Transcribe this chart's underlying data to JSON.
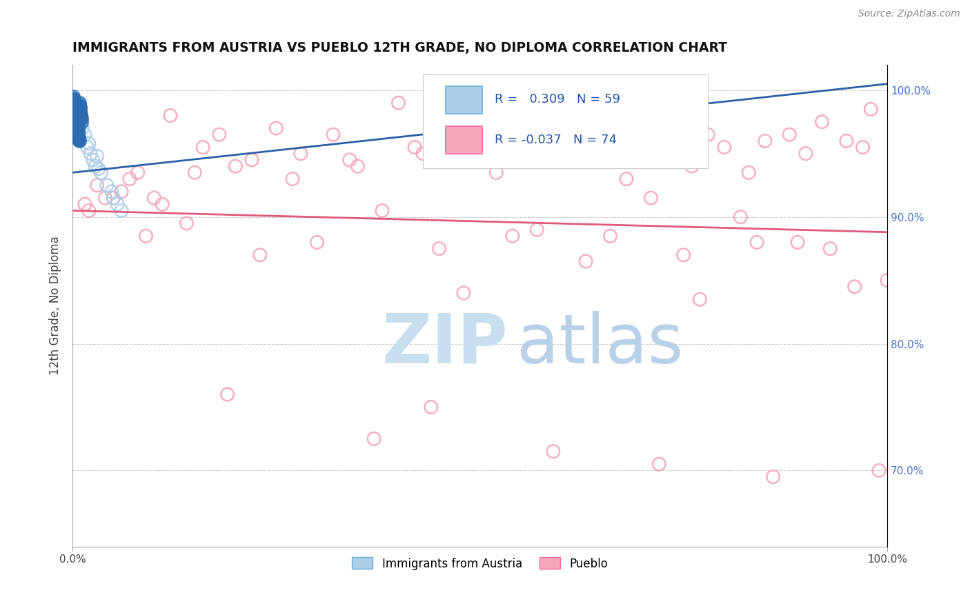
{
  "title": "IMMIGRANTS FROM AUSTRIA VS PUEBLO 12TH GRADE, NO DIPLOMA CORRELATION CHART",
  "source": "Source: ZipAtlas.com",
  "ylabel": "12th Grade, No Diploma",
  "legend_blue_label": "Immigrants from Austria",
  "legend_pink_label": "Pueblo",
  "r_blue": 0.309,
  "n_blue": 59,
  "r_pink": -0.037,
  "n_pink": 74,
  "blue_circle_color": "#aecde8",
  "blue_fill_color": "#2b6cb0",
  "pink_circle_color": "#f4a7b9",
  "trend_blue": "#2b5fa5",
  "trend_pink": "#e05a7a",
  "background": "#ffffff",
  "grid_color": "#cccccc",
  "watermark_zip_color": "#c8dff0",
  "watermark_atlas_color": "#b8d0e8",
  "blue_open_x": [
    1.5,
    2.2,
    2.8,
    3.5,
    1.8,
    4.2,
    5.0,
    2.5,
    6.0,
    3.0,
    4.8,
    3.2,
    1.2,
    2.0,
    5.5
  ],
  "blue_open_y": [
    96.5,
    95.0,
    94.0,
    93.5,
    95.5,
    92.5,
    91.5,
    94.5,
    90.5,
    94.8,
    92.0,
    93.8,
    97.0,
    95.8,
    91.0
  ],
  "blue_dense_x": [
    0.1,
    0.15,
    0.2,
    0.25,
    0.3,
    0.35,
    0.4,
    0.45,
    0.5,
    0.55,
    0.6,
    0.65,
    0.7,
    0.75,
    0.8,
    0.85,
    0.9,
    0.95,
    1.0,
    1.05,
    1.1,
    0.12,
    0.18,
    0.22,
    0.28,
    0.32,
    0.38,
    0.42,
    0.48,
    0.52,
    0.58,
    0.62,
    0.68,
    0.72,
    0.78,
    0.82,
    0.88,
    0.92,
    0.98
  ],
  "blue_dense_y": [
    99.5,
    99.2,
    99.0,
    98.8,
    98.5,
    98.2,
    98.0,
    97.8,
    97.5,
    97.2,
    97.0,
    96.8,
    96.5,
    96.2,
    96.0,
    99.0,
    98.7,
    98.4,
    98.1,
    97.8,
    97.5,
    99.3,
    99.1,
    98.9,
    98.6,
    98.3,
    98.1,
    97.9,
    97.6,
    97.3,
    97.1,
    96.9,
    96.6,
    96.3,
    96.1,
    98.8,
    98.5,
    98.2,
    97.9
  ],
  "pink_x": [
    1.5,
    3.0,
    5.0,
    8.0,
    12.0,
    18.0,
    25.0,
    32.0,
    40.0,
    48.0,
    55.0,
    62.0,
    70.0,
    78.0,
    85.0,
    92.0,
    98.0,
    4.0,
    7.0,
    11.0,
    16.0,
    22.0,
    28.0,
    35.0,
    42.0,
    50.0,
    58.0,
    65.0,
    73.0,
    80.0,
    88.0,
    95.0,
    2.0,
    6.0,
    10.0,
    15.0,
    20.0,
    27.0,
    34.0,
    43.0,
    52.0,
    60.0,
    68.0,
    76.0,
    83.0,
    90.0,
    97.0,
    9.0,
    30.0,
    45.0,
    57.0,
    66.0,
    75.0,
    84.0,
    93.0,
    38.0,
    54.0,
    71.0,
    82.0,
    96.0,
    14.0,
    23.0,
    48.0,
    63.0,
    77.0,
    89.0,
    100.0,
    19.0,
    44.0,
    59.0,
    72.0,
    86.0,
    99.0,
    37.0
  ],
  "pink_y": [
    91.0,
    92.5,
    91.5,
    93.5,
    98.0,
    96.5,
    97.0,
    96.5,
    99.0,
    98.5,
    95.5,
    96.0,
    98.0,
    96.5,
    96.0,
    97.5,
    98.5,
    91.5,
    93.0,
    91.0,
    95.5,
    94.5,
    95.0,
    94.0,
    95.5,
    94.5,
    96.0,
    96.5,
    95.0,
    95.5,
    96.5,
    96.0,
    90.5,
    92.0,
    91.5,
    93.5,
    94.0,
    93.0,
    94.5,
    95.0,
    93.5,
    94.5,
    93.0,
    94.0,
    93.5,
    95.0,
    95.5,
    88.5,
    88.0,
    87.5,
    89.0,
    88.5,
    87.0,
    88.0,
    87.5,
    90.5,
    88.5,
    91.5,
    90.0,
    84.5,
    89.5,
    87.0,
    84.0,
    86.5,
    83.5,
    88.0,
    85.0,
    76.0,
    75.0,
    71.5,
    70.5,
    69.5,
    70.0,
    72.5
  ],
  "xlim": [
    0,
    100
  ],
  "ylim": [
    64,
    102
  ],
  "yticks": [
    70.0,
    80.0,
    90.0,
    100.0
  ],
  "blue_trend_x0": 0,
  "blue_trend_y0": 93.5,
  "blue_trend_x1": 100,
  "blue_trend_y1": 100.5,
  "pink_trend_x0": 0,
  "pink_trend_y0": 90.5,
  "pink_trend_x1": 100,
  "pink_trend_y1": 88.8
}
